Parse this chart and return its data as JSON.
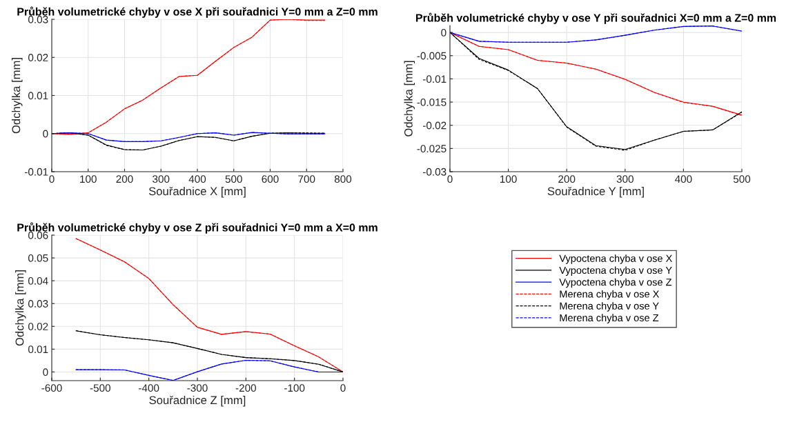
{
  "chart_data": [
    {
      "type": "line",
      "title": "Průběh volumetrické chyby v ose X při souřadnici Y=0 mm a Z=0 mm",
      "xlabel": "Souřadnice X [mm]",
      "ylabel": "Odchylka [mm]",
      "xlim": [
        0,
        800
      ],
      "xticks": [
        0,
        100,
        200,
        300,
        400,
        500,
        600,
        700,
        800
      ],
      "ylim": [
        -0.01,
        0.03
      ],
      "yticks": [
        -0.01,
        0,
        0.01,
        0.02,
        0.03
      ],
      "grid": true,
      "x": [
        0,
        50,
        100,
        150,
        200,
        250,
        300,
        350,
        400,
        450,
        500,
        550,
        600,
        650,
        700,
        750
      ],
      "series": [
        {
          "color": "#ff0000",
          "line_style": "solid",
          "values": [
            0,
            -0.0002,
            0.0002,
            0.003,
            0.0065,
            0.0088,
            0.012,
            0.015,
            0.0153,
            0.019,
            0.0226,
            0.0253,
            0.0298,
            0.03,
            0.0298,
            0.0298
          ]
        },
        {
          "color": "#000000",
          "line_style": "solid",
          "values": [
            0,
            0.0002,
            -0.0004,
            -0.003,
            -0.0042,
            -0.0043,
            -0.0033,
            -0.0018,
            -0.0008,
            -0.001,
            -0.0019,
            -0.0007,
            0.0001,
            0.0002,
            0.0001,
            0.0001
          ]
        },
        {
          "color": "#0000ff",
          "line_style": "solid",
          "values": [
            0,
            0.0002,
            0,
            -0.0017,
            -0.0021,
            -0.0021,
            -0.0019,
            -0.001,
            0,
            0.0002,
            -0.0004,
            0.0003,
            0.0001,
            -0.0001,
            -0.0001,
            -0.0001
          ]
        },
        {
          "color": "#ff0000",
          "line_style": "dashed",
          "values": [
            0,
            -0.0002,
            0.0002,
            0.003,
            0.0065,
            0.0088,
            0.012,
            0.015,
            0.0153,
            0.019,
            0.0226,
            0.0253,
            0.0298,
            0.03,
            0.0297,
            0.0297
          ]
        },
        {
          "color": "#000000",
          "line_style": "dashed",
          "values": [
            0,
            0.0002,
            -0.0004,
            -0.0031,
            -0.0042,
            -0.0043,
            -0.0033,
            -0.0018,
            -0.0008,
            -0.001,
            -0.0019,
            -0.0007,
            0.0001,
            0.0002,
            0.0002,
            0.0001
          ]
        },
        {
          "color": "#0000ff",
          "line_style": "dashed",
          "values": [
            0,
            0.0002,
            0,
            -0.0017,
            -0.0021,
            -0.0021,
            -0.0019,
            -0.001,
            0,
            0.0002,
            -0.0004,
            0.0003,
            0.0001,
            -0.0001,
            -0.0001,
            -0.0001
          ]
        }
      ]
    },
    {
      "type": "line",
      "title": "Průběh volumetrické chyby v ose Y při souřadnici X=0 mm a Z=0 mm",
      "xlabel": "Souřadnice Y [mm]",
      "ylabel": "Odchylka [mm]",
      "xlim": [
        0,
        500
      ],
      "xticks": [
        0,
        100,
        200,
        300,
        400,
        500
      ],
      "ylim": [
        -0.03,
        0.0015
      ],
      "yticks": [
        -0.03,
        -0.025,
        -0.02,
        -0.015,
        -0.01,
        -0.005,
        0
      ],
      "grid": true,
      "x": [
        0,
        50,
        100,
        150,
        200,
        250,
        300,
        350,
        400,
        450,
        500
      ],
      "series": [
        {
          "color": "#ff0000",
          "line_style": "solid",
          "values": [
            0,
            -0.003,
            -0.0037,
            -0.006,
            -0.0066,
            -0.0079,
            -0.0101,
            -0.0129,
            -0.015,
            -0.0159,
            -0.0178
          ]
        },
        {
          "color": "#000000",
          "line_style": "solid",
          "values": [
            0,
            -0.0056,
            -0.0081,
            -0.0121,
            -0.0203,
            -0.0244,
            -0.0252,
            -0.0232,
            -0.0213,
            -0.021,
            -0.0171
          ]
        },
        {
          "color": "#0000ff",
          "line_style": "solid",
          "values": [
            0,
            -0.0019,
            -0.0021,
            -0.0021,
            -0.0021,
            -0.0016,
            -0.0006,
            0.0005,
            0.0013,
            0.0014,
            0.0003
          ]
        },
        {
          "color": "#ff0000",
          "line_style": "dashed",
          "values": [
            0,
            -0.003,
            -0.0037,
            -0.006,
            -0.0066,
            -0.0079,
            -0.0101,
            -0.0129,
            -0.0151,
            -0.0159,
            -0.0179
          ]
        },
        {
          "color": "#000000",
          "line_style": "dashed",
          "values": [
            0,
            -0.0058,
            -0.0082,
            -0.0121,
            -0.0204,
            -0.0245,
            -0.0254,
            -0.0232,
            -0.0213,
            -0.021,
            -0.0172
          ]
        },
        {
          "color": "#0000ff",
          "line_style": "dashed",
          "values": [
            0,
            -0.0019,
            -0.0021,
            -0.0021,
            -0.0021,
            -0.0016,
            -0.0006,
            0.0005,
            0.0013,
            0.0014,
            0.0003
          ]
        }
      ]
    },
    {
      "type": "line",
      "title": "Průběh volumetrické chyby v ose Z při souřadnici Y=0 mm a X=0 mm",
      "xlabel": "Souřadnice Z [mm]",
      "ylabel": "Odchylka [mm]",
      "xlim": [
        -600,
        0
      ],
      "xticks": [
        -600,
        -500,
        -400,
        -300,
        -200,
        -100,
        0
      ],
      "ylim": [
        -0.0038,
        0.06
      ],
      "yticks": [
        0,
        0.01,
        0.02,
        0.03,
        0.04,
        0.05,
        0.06
      ],
      "grid": true,
      "legend": "right",
      "x": [
        -550,
        -500,
        -450,
        -400,
        -350,
        -300,
        -250,
        -200,
        -150,
        -100,
        -50,
        0
      ],
      "series": [
        {
          "name": "Vypoctena chyba v ose X",
          "color": "#ff0000",
          "line_style": "solid",
          "values": [
            0.0585,
            0.0535,
            0.0483,
            0.041,
            0.0295,
            0.0196,
            0.0165,
            0.0177,
            0.0166,
            0.0115,
            0.0066,
            0
          ]
        },
        {
          "name": "Vypoctena chyba v ose Y",
          "color": "#000000",
          "line_style": "solid",
          "values": [
            0.018,
            0.0163,
            0.0151,
            0.0141,
            0.0128,
            0.0103,
            0.0077,
            0.0063,
            0.0058,
            0.005,
            0.0034,
            0
          ]
        },
        {
          "name": "Vypoctena chyba v ose Z",
          "color": "#0000ff",
          "line_style": "solid",
          "values": [
            0.001,
            0.001,
            0.0009,
            -0.0015,
            -0.0037,
            0.0001,
            0.0035,
            0.0051,
            0.0049,
            0.0022,
            0,
            0
          ]
        },
        {
          "name": "Merena chyba v ose X",
          "color": "#ff0000",
          "line_style": "dashed",
          "values": [
            0.0585,
            0.0535,
            0.0483,
            0.041,
            0.0295,
            0.0196,
            0.0165,
            0.0177,
            0.0166,
            0.0115,
            0.0066,
            0
          ]
        },
        {
          "name": "Merena chyba v ose Y",
          "color": "#000000",
          "line_style": "dashed",
          "values": [
            0.0181,
            0.0163,
            0.0151,
            0.0141,
            0.0128,
            0.0103,
            0.0077,
            0.0063,
            0.0058,
            0.005,
            0.0034,
            0
          ]
        },
        {
          "name": "Merena chyba v ose Z",
          "color": "#0000ff",
          "line_style": "dashed",
          "values": [
            0.001,
            0.001,
            0.0009,
            -0.0015,
            -0.0037,
            0.0001,
            0.0035,
            0.0051,
            0.0049,
            0.0022,
            0,
            0
          ]
        }
      ]
    }
  ]
}
